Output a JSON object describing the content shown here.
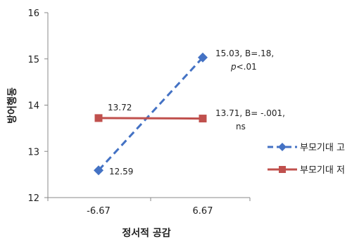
{
  "chart_data": {
    "type": "line",
    "title": "",
    "xlabel": "정서적 공감",
    "ylabel": "방어행동",
    "x_categories": [
      "-6.67",
      "6.67"
    ],
    "ylim": [
      12,
      16
    ],
    "yticks": [
      "12",
      "13",
      "14",
      "15",
      "16"
    ],
    "grid": false,
    "legend_position": "right",
    "series": [
      {
        "name": "부모기대 고",
        "values": [
          12.59,
          15.03
        ],
        "color": "#4472C4",
        "line_style": "dashed",
        "marker": "diamond",
        "labels": [
          "12.59",
          "15.03, B=.18, p<.01"
        ]
      },
      {
        "name": "부모기대 저",
        "values": [
          13.72,
          13.71
        ],
        "color": "#C0504D",
        "line_style": "solid",
        "marker": "square",
        "labels": [
          "13.72",
          "13.71, B= -.001, ns"
        ]
      }
    ]
  }
}
